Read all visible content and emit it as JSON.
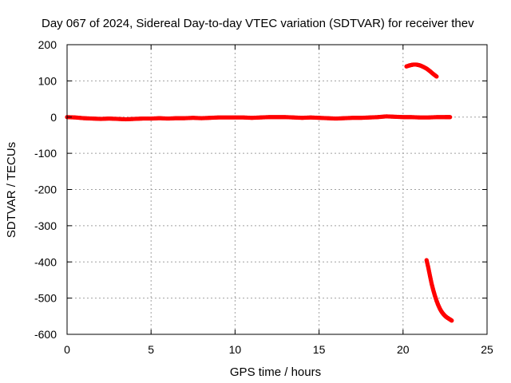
{
  "chart_data": {
    "type": "scatter",
    "title": "Day 067 of 2024, Sidereal Day-to-day VTEC variation (SDTVAR) for receiver thev",
    "xlabel": "GPS time / hours",
    "ylabel": "SDTVAR / TECUs",
    "xlim": [
      0,
      25
    ],
    "ylim": [
      -600,
      200
    ],
    "x_ticks": [
      0,
      5,
      10,
      15,
      20,
      25
    ],
    "y_ticks": [
      200,
      100,
      0,
      -100,
      -200,
      -300,
      -400,
      -500,
      -600
    ],
    "grid": true,
    "marker_color": "#ff0000",
    "series": [
      {
        "points": [
          [
            0.0,
            0
          ],
          [
            0.5,
            -1
          ],
          [
            1.0,
            -3
          ],
          [
            1.5,
            -4
          ],
          [
            2.0,
            -5
          ],
          [
            2.5,
            -4
          ],
          [
            3.0,
            -5
          ],
          [
            3.5,
            -6
          ],
          [
            4.0,
            -5
          ],
          [
            4.5,
            -4
          ],
          [
            5.0,
            -4
          ],
          [
            5.5,
            -3
          ],
          [
            6.0,
            -4
          ],
          [
            6.5,
            -3
          ],
          [
            7.0,
            -3
          ],
          [
            7.5,
            -2
          ],
          [
            8.0,
            -3
          ],
          [
            8.5,
            -2
          ],
          [
            9.0,
            -1
          ],
          [
            9.5,
            -1
          ],
          [
            10.0,
            -1
          ],
          [
            10.5,
            -1
          ],
          [
            11.0,
            -2
          ],
          [
            11.5,
            -1
          ],
          [
            12.0,
            0
          ],
          [
            12.5,
            0
          ],
          [
            13.0,
            0
          ],
          [
            13.5,
            -1
          ],
          [
            14.0,
            -2
          ],
          [
            14.5,
            -1
          ],
          [
            15.0,
            -2
          ],
          [
            15.5,
            -3
          ],
          [
            16.0,
            -4
          ],
          [
            16.5,
            -3
          ],
          [
            17.0,
            -2
          ],
          [
            17.5,
            -2
          ],
          [
            18.0,
            -1
          ],
          [
            18.5,
            0
          ],
          [
            19.0,
            2
          ],
          [
            19.5,
            1
          ],
          [
            20.0,
            0
          ],
          [
            20.5,
            0
          ],
          [
            21.0,
            -1
          ],
          [
            21.5,
            -1
          ],
          [
            22.0,
            0
          ],
          [
            22.5,
            0
          ],
          [
            22.8,
            0
          ]
        ]
      },
      {
        "points": [
          [
            20.2,
            140
          ],
          [
            20.4,
            143
          ],
          [
            20.6,
            145
          ],
          [
            20.8,
            145
          ],
          [
            21.0,
            143
          ],
          [
            21.2,
            139
          ],
          [
            21.4,
            134
          ],
          [
            21.6,
            127
          ],
          [
            21.8,
            119
          ],
          [
            22.0,
            112
          ]
        ]
      },
      {
        "points": [
          [
            21.4,
            -395
          ],
          [
            21.5,
            -415
          ],
          [
            21.6,
            -438
          ],
          [
            21.7,
            -460
          ],
          [
            21.8,
            -478
          ],
          [
            21.9,
            -494
          ],
          [
            22.0,
            -508
          ],
          [
            22.1,
            -520
          ],
          [
            22.2,
            -530
          ],
          [
            22.3,
            -538
          ],
          [
            22.4,
            -544
          ],
          [
            22.5,
            -549
          ],
          [
            22.6,
            -553
          ],
          [
            22.7,
            -556
          ],
          [
            22.8,
            -559
          ],
          [
            22.9,
            -562
          ]
        ]
      }
    ]
  }
}
